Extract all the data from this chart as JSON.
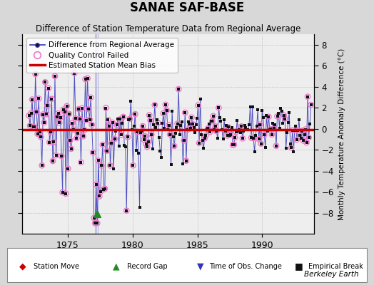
{
  "title": "SANAE SAF-BASE",
  "subtitle": "Difference of Station Temperature Data from Regional Average",
  "ylabel": "Monthly Temperature Anomaly Difference (°C)",
  "xlim": [
    1971.5,
    1994.0
  ],
  "ylim": [
    -10,
    9
  ],
  "yticks": [
    -8,
    -6,
    -4,
    -2,
    0,
    2,
    4,
    6,
    8
  ],
  "xticks": [
    1975,
    1980,
    1985,
    1990
  ],
  "bias_level": -0.1,
  "line_color": "#3333bb",
  "line_color_light": "#8888dd",
  "dot_color": "#111111",
  "qc_circle_color": "#ee77cc",
  "bias_color": "#cc0000",
  "bg_color": "#d8d8d8",
  "plot_bg_color": "#eeeeee",
  "station_move_color": "#cc0000",
  "record_gap_color": "#228B22",
  "obs_change_color": "#3333bb",
  "empirical_break_color": "#111111",
  "record_gap_x": 1977.25,
  "record_gap_y": -8.1,
  "berkeley_earth_text": "Berkeley Earth",
  "seed": 42,
  "start_year": 1972.0,
  "end_year": 1993.75
}
